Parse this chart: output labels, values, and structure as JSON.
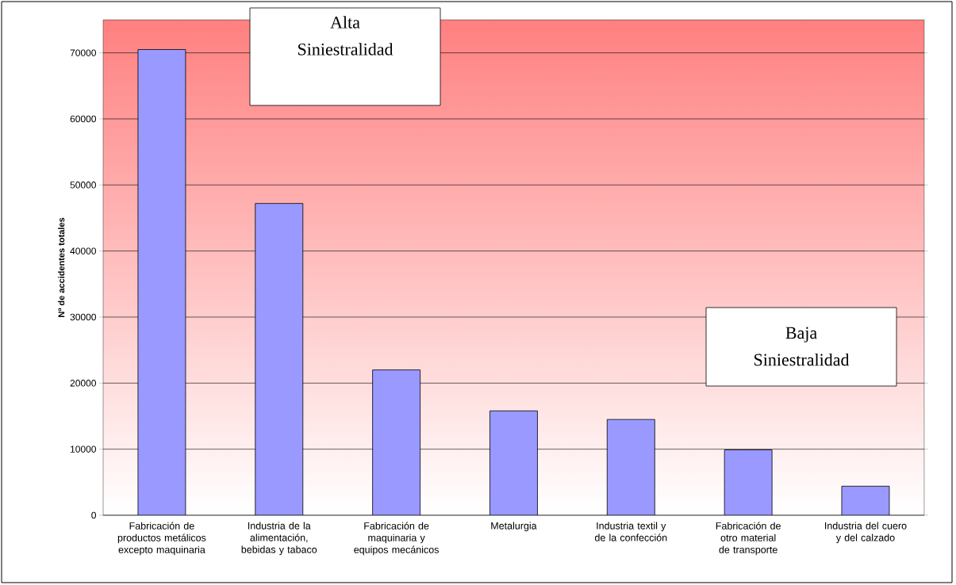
{
  "chart_data": {
    "type": "bar",
    "ylabel": "Nº de accidentes totales",
    "categories": [
      "Fabricación de productos metálicos excepto maquinaria",
      "Industria de la alimentación, bebidas y tabaco",
      "Fabricación de maquinaria y equipos mecánicos",
      "Metalurgia",
      "Industria textil y de la confección",
      "Fabricación de otro material de transporte",
      "Industria del cuero y del calzado"
    ],
    "values": [
      70500,
      47200,
      22000,
      15800,
      14500,
      9900,
      4400
    ],
    "color": "#9999ff",
    "ylim": [
      0,
      75000
    ],
    "yticks": [
      0,
      10000,
      20000,
      30000,
      40000,
      50000,
      60000,
      70000
    ],
    "grid": "y",
    "annotations": [
      "Alta Siniestralidad",
      "Baja Siniestralidad"
    ]
  }
}
